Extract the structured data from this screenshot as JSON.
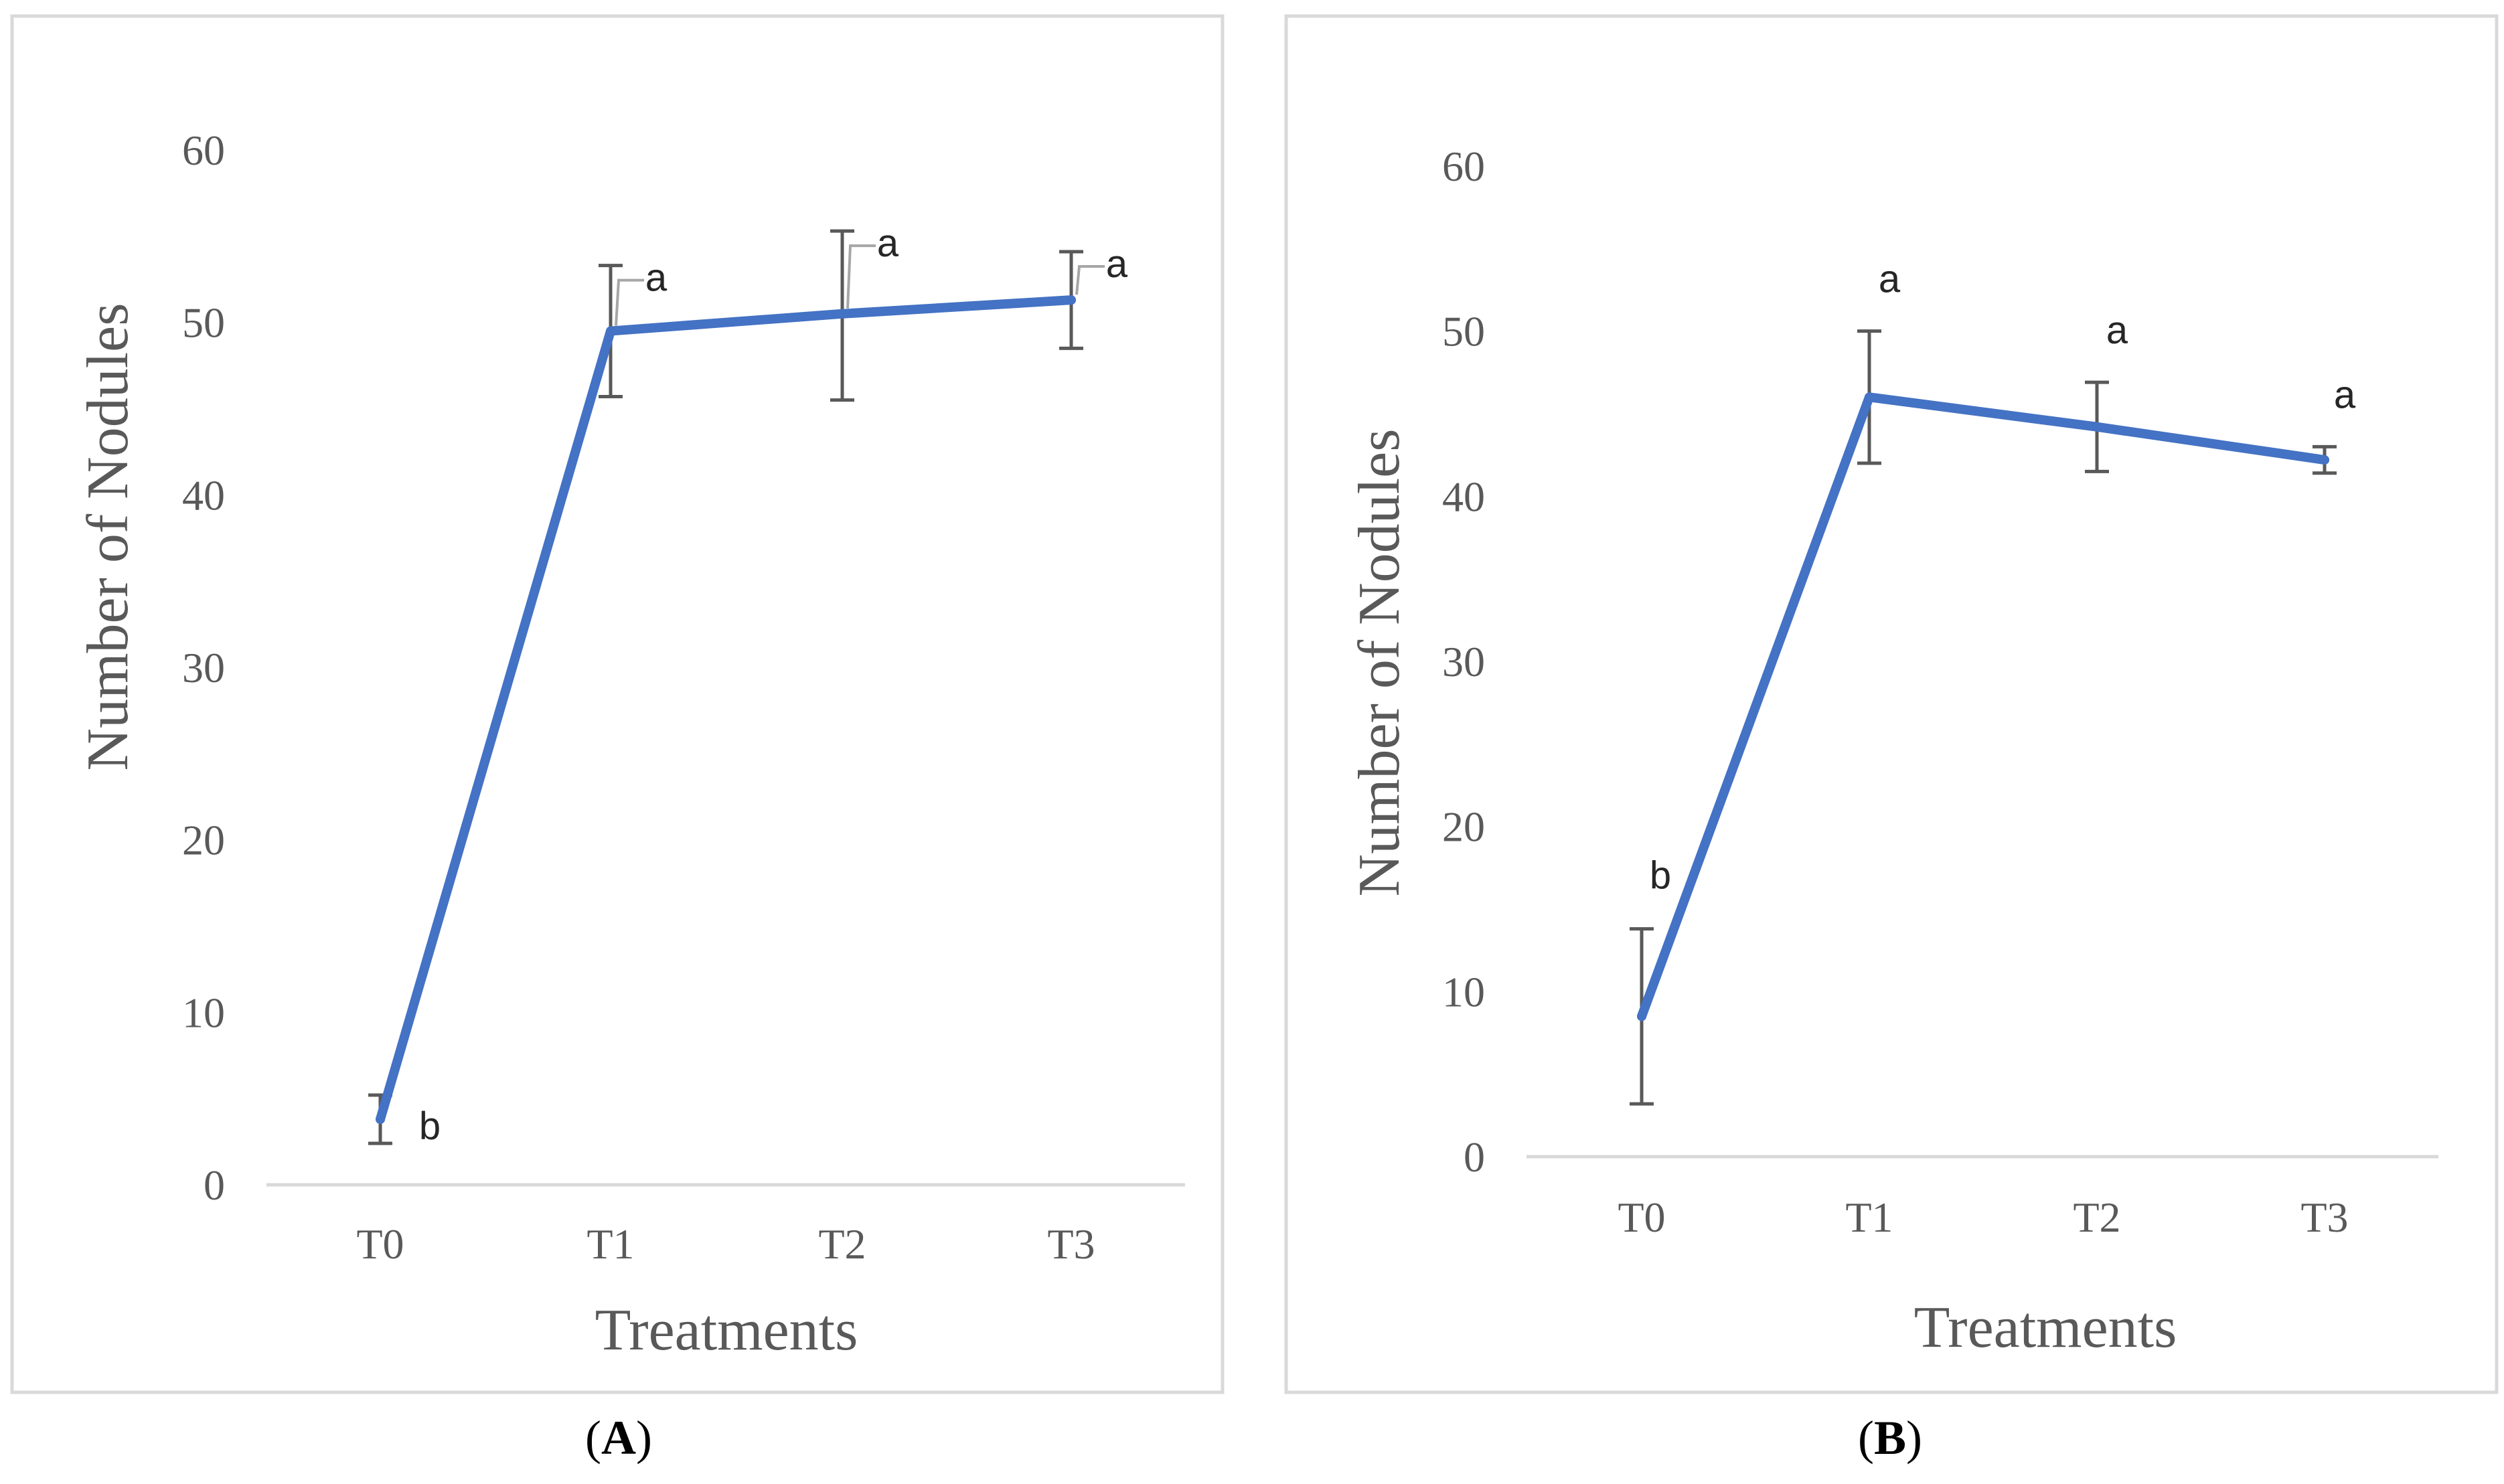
{
  "figure": {
    "panel_a_caption": {
      "open": "(",
      "letter": "A",
      "close": ")"
    },
    "panel_b_caption": {
      "open": "(",
      "letter": "B",
      "close": ")"
    }
  },
  "colors": {
    "series_line": "#4472C4",
    "error_bar": "#595959",
    "label_leader": "#A6A6A6",
    "axis_line": "#D9D9D9",
    "panel_border": "#D9D9D9",
    "tick_text": "#595959"
  },
  "chart_data": [
    {
      "type": "line",
      "title": "",
      "xlabel": "Treatments",
      "ylabel": "Number of Nodules",
      "categories": [
        "T0",
        "T1",
        "T2",
        "T3"
      ],
      "ylim": [
        0,
        60
      ],
      "yticks": [
        0,
        10,
        20,
        30,
        40,
        50,
        60
      ],
      "grid": false,
      "series": [
        {
          "name": "Number of Nodules",
          "values": [
            3.8,
            49.5,
            50.5,
            51.3
          ],
          "error_low": [
            1.4,
            3.8,
            5.0,
            2.8
          ],
          "error_high": [
            1.4,
            3.8,
            4.8,
            2.8
          ],
          "significance": [
            "b",
            "a",
            "a",
            "a"
          ]
        }
      ]
    },
    {
      "type": "line",
      "title": "",
      "xlabel": "Treatments",
      "ylabel": "Number of Nodules",
      "categories": [
        "T0",
        "T1",
        "T2",
        "T3"
      ],
      "ylim": [
        0,
        60
      ],
      "yticks": [
        0,
        10,
        20,
        30,
        40,
        50,
        60
      ],
      "grid": false,
      "series": [
        {
          "name": "Number of Nodules",
          "values": [
            8.5,
            46.0,
            44.2,
            42.2
          ],
          "error_low": [
            5.3,
            4.0,
            2.7,
            0.8
          ],
          "error_high": [
            5.3,
            4.0,
            2.7,
            0.8
          ],
          "significance": [
            "b",
            "a",
            "a",
            "a"
          ]
        }
      ]
    }
  ]
}
